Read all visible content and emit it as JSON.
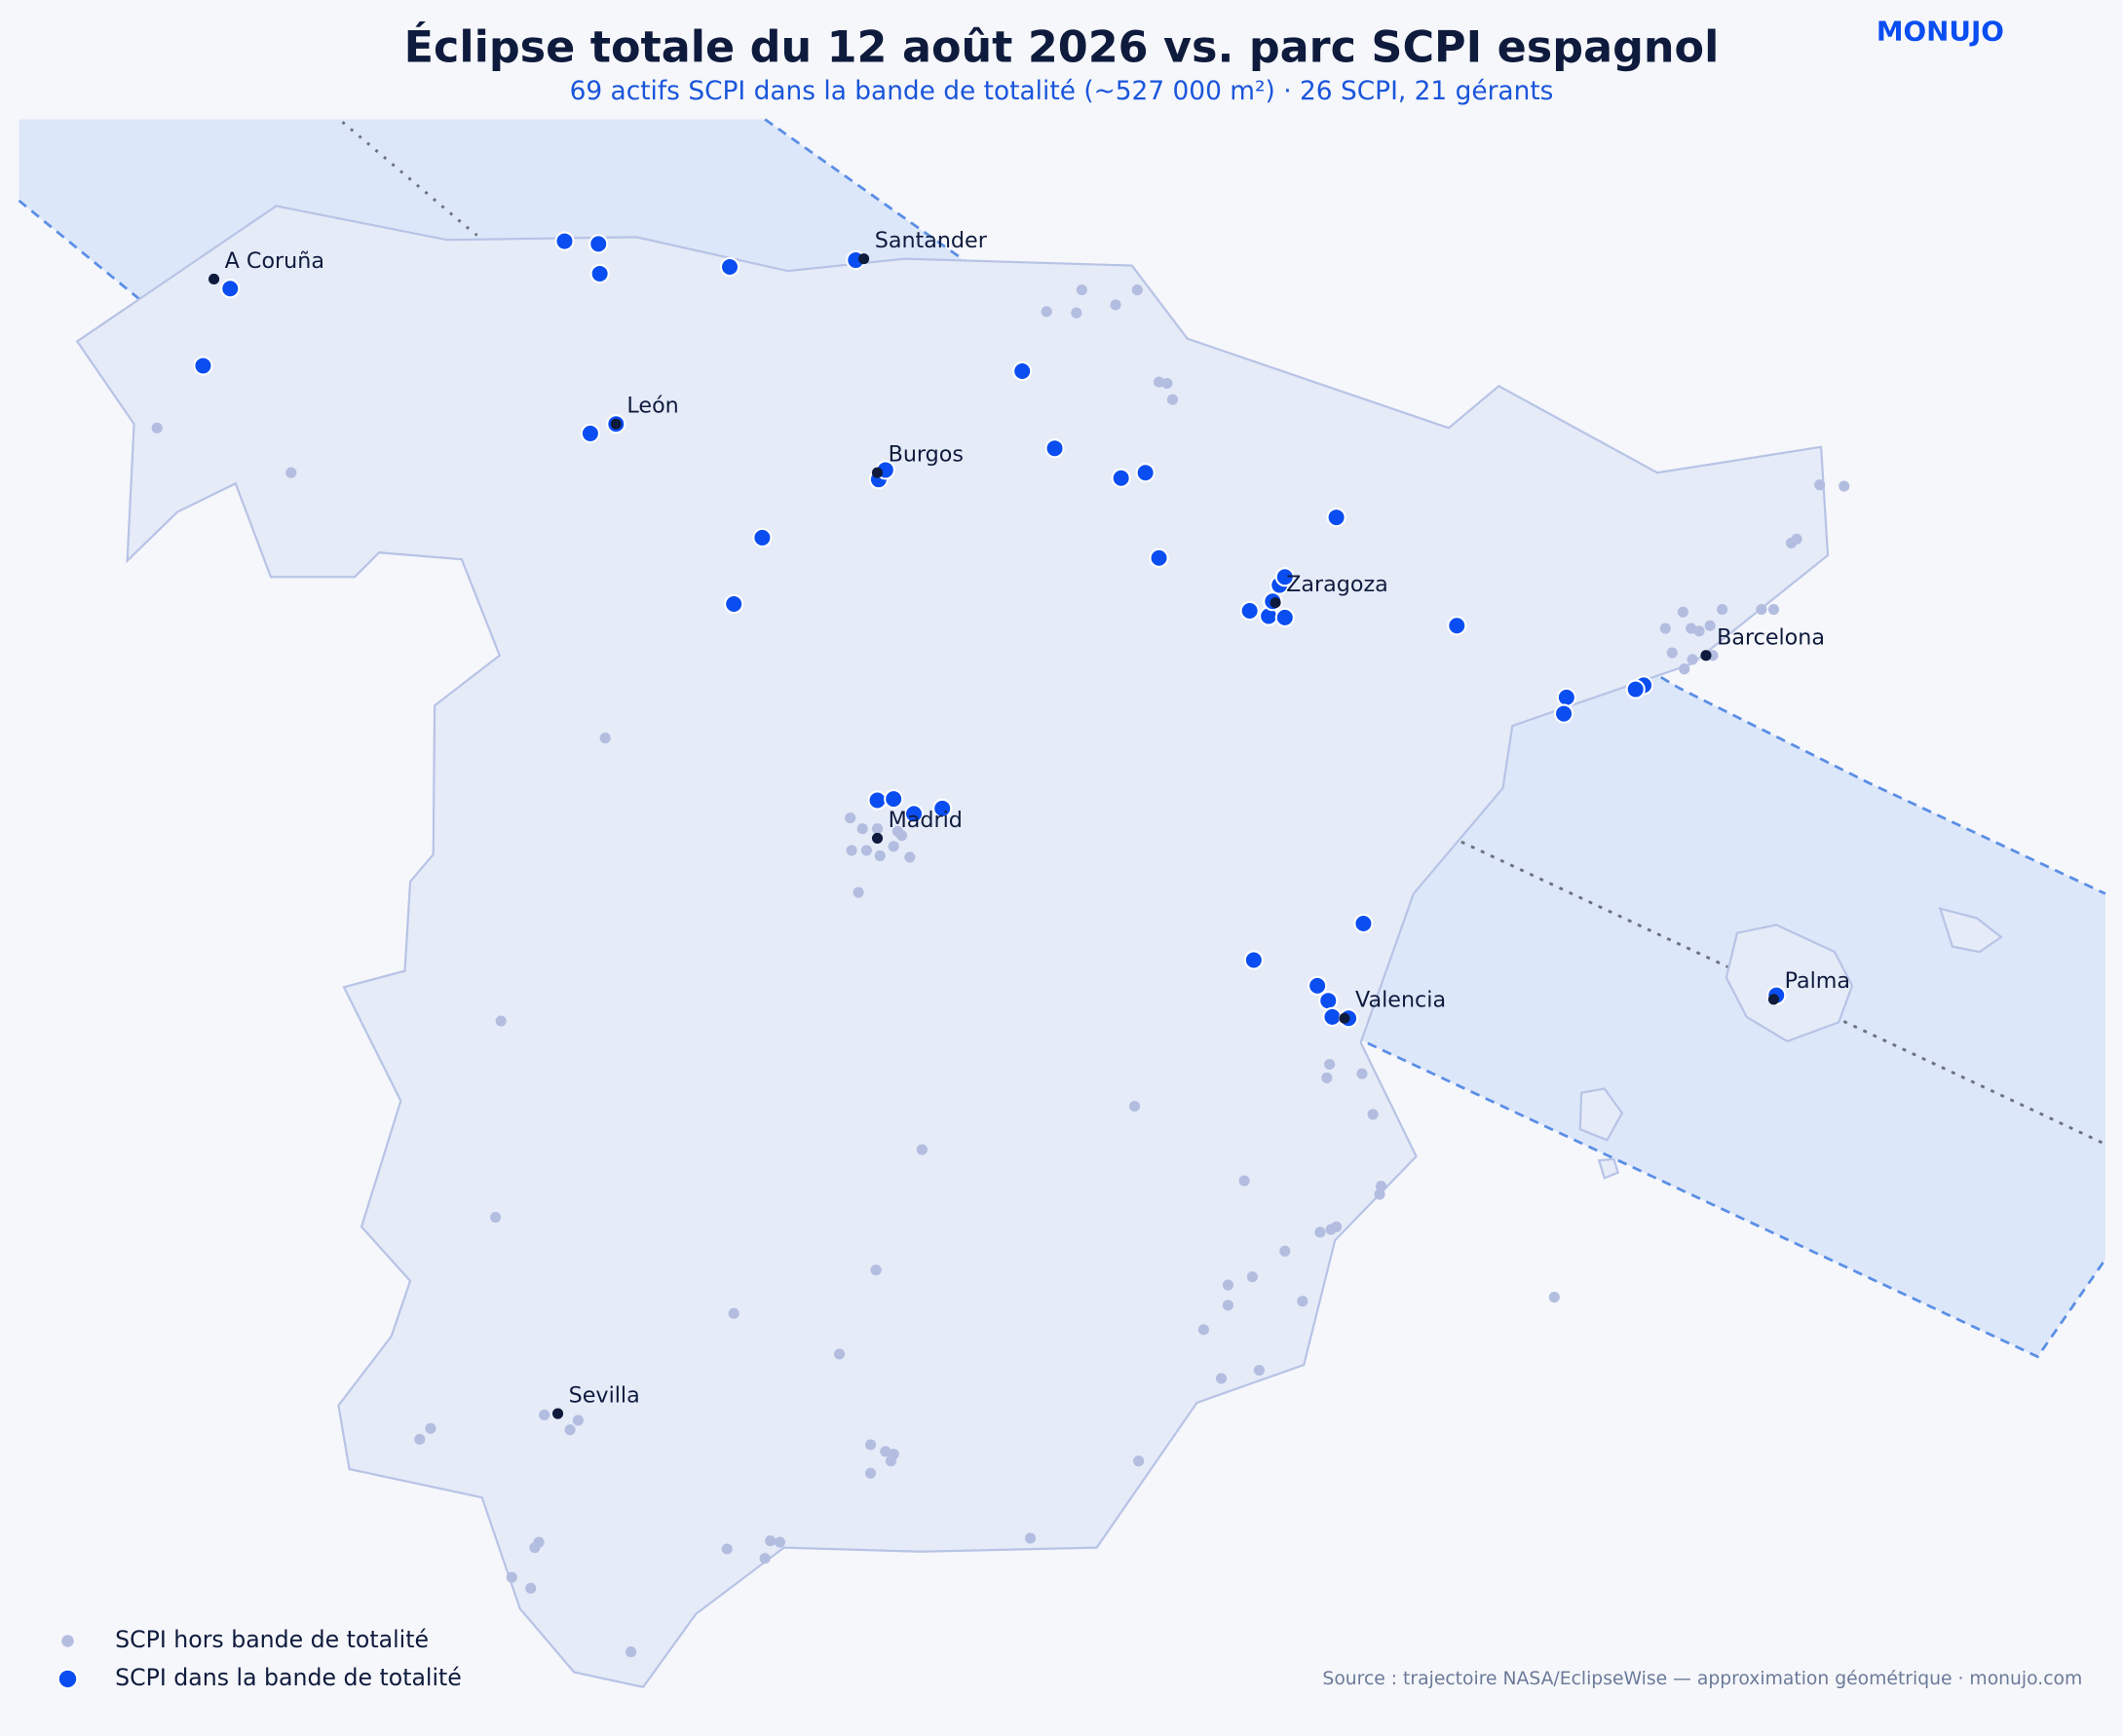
{
  "header": {
    "title": "Éclipse totale du 12 août 2026 vs. parc SCPI espagnol",
    "subtitle": "69 actifs SCPI dans la bande de totalité (~527 000 m²) · 26 SCPI, 21 gérants",
    "brand": "MONUJO"
  },
  "cities": [
    "A Coruña",
    "Santander",
    "León",
    "Burgos",
    "Zaragoza",
    "Barcelona",
    "Madrid",
    "Valencia",
    "Palma",
    "Sevilla"
  ],
  "legend": [
    "SCPI hors bande de totalité",
    "SCPI dans la bande de totalité"
  ],
  "source": "Source : trajectoire NASA/EclipseWise — approximation géométrique · monujo.com"
}
